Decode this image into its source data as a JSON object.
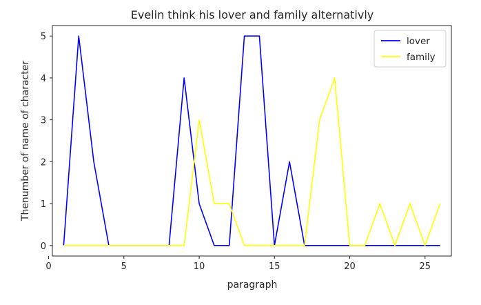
{
  "chart_data": {
    "type": "line",
    "title": "Evelin think his lover and family alternativly",
    "xlabel": "paragraph",
    "ylabel": "Thenumber of name of character",
    "x": [
      1,
      2,
      3,
      4,
      5,
      6,
      7,
      8,
      9,
      10,
      11,
      12,
      13,
      14,
      15,
      16,
      17,
      18,
      19,
      20,
      21,
      22,
      23,
      24,
      25,
      26
    ],
    "xlim": [
      0.25,
      26.75
    ],
    "ylim": [
      -0.25,
      5.25
    ],
    "xticks": [
      0,
      5,
      10,
      15,
      20,
      25
    ],
    "yticks": [
      0,
      1,
      2,
      3,
      4,
      5
    ],
    "grid": false,
    "legend_position": "top-right",
    "series": [
      {
        "name": "lover",
        "color": "#0000ff",
        "values": [
          0,
          5,
          2,
          0,
          0,
          0,
          0,
          0,
          4,
          1,
          0,
          0,
          5,
          5,
          0,
          2,
          0,
          0,
          0,
          0,
          0,
          0,
          0,
          0,
          0,
          0
        ]
      },
      {
        "name": "family",
        "color": "#ffff00",
        "values": [
          0,
          0,
          0,
          0,
          0,
          0,
          0,
          0,
          0,
          3,
          1,
          1,
          0,
          0,
          0,
          0,
          0,
          3,
          4,
          0,
          0,
          1,
          0,
          1,
          0,
          1
        ]
      }
    ]
  }
}
